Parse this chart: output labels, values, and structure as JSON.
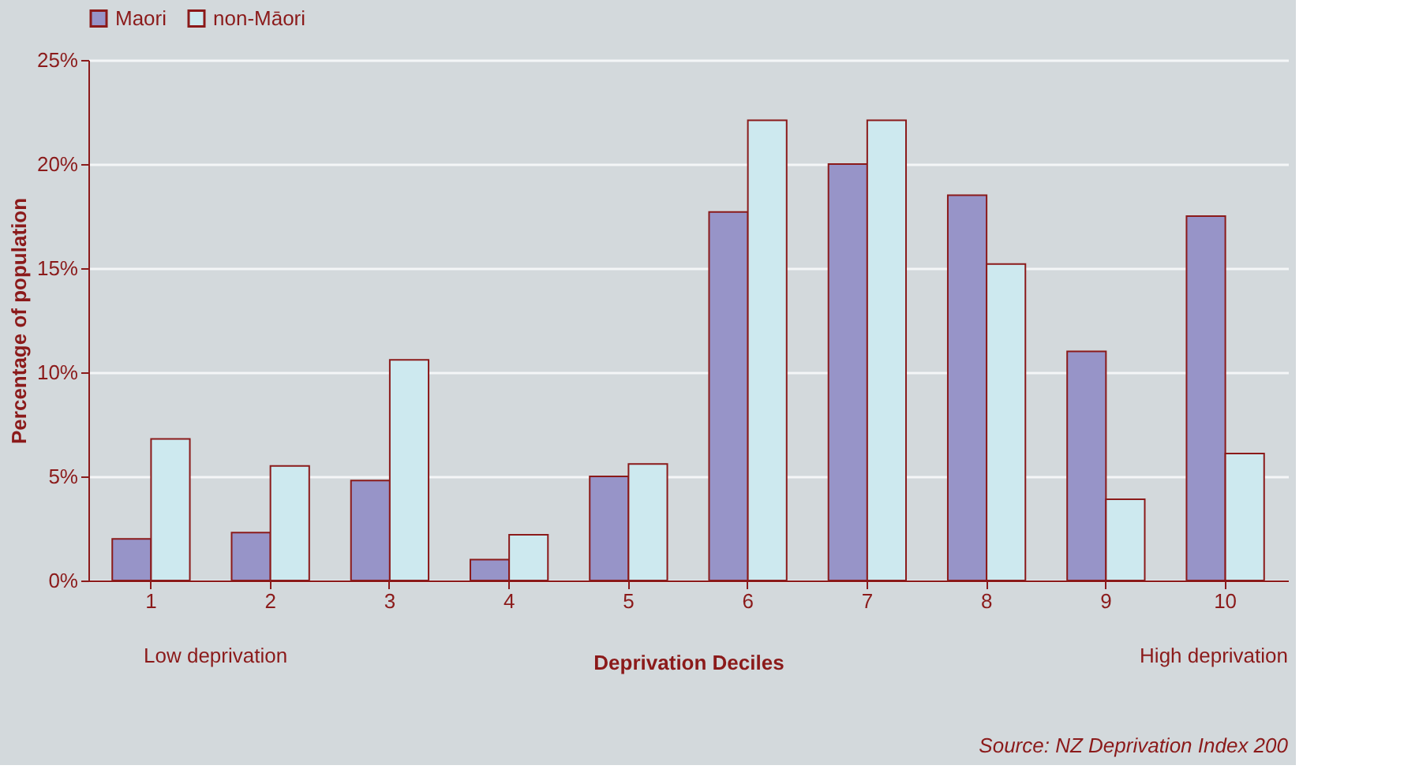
{
  "chart_data": {
    "type": "bar",
    "xlabel": "Deprivation Deciles",
    "ylabel": "Percentage of population",
    "categories": [
      "1",
      "2",
      "3",
      "4",
      "5",
      "6",
      "7",
      "8",
      "9",
      "10"
    ],
    "series": [
      {
        "name": "Maori",
        "color": "#9794c8",
        "values": [
          2.0,
          2.3,
          4.8,
          1.0,
          5.0,
          17.7,
          20.0,
          18.5,
          11.0,
          17.5
        ]
      },
      {
        "name": "non-Māori",
        "color": "#cde9ef",
        "values": [
          6.8,
          5.5,
          10.6,
          2.2,
          5.6,
          22.1,
          22.1,
          15.2,
          3.9,
          6.1
        ]
      }
    ],
    "ylim": [
      0,
      25
    ],
    "yticks": [
      {
        "value": 0,
        "label": "0%"
      },
      {
        "value": 5,
        "label": "5%"
      },
      {
        "value": 10,
        "label": "10%"
      },
      {
        "value": 15,
        "label": "15%"
      },
      {
        "value": 20,
        "label": "20%"
      },
      {
        "value": 25,
        "label": "25%"
      }
    ],
    "grid": "y",
    "legend": "top",
    "annotations": [
      "Low deprivation",
      "High deprivation",
      "Source: NZ Deprivation Index 200"
    ]
  }
}
